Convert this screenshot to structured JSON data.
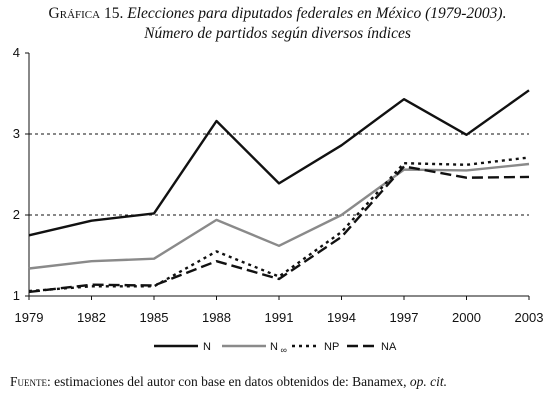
{
  "title": {
    "label": "Gráfica 15.",
    "text": "Elecciones para diputados federales en México (1979-2003).",
    "subtitle": "Número de partidos según diversos índices"
  },
  "source": {
    "label": "Fuente:",
    "text": "estimaciones del autor con base en datos obtenidos de: Banamex,",
    "cit": "op. cit."
  },
  "chart_data": {
    "type": "line",
    "title": "Elecciones para diputados federales en México (1979-2003). Número de partidos según diversos índices",
    "xlabel": "",
    "ylabel": "",
    "x": [
      "1979",
      "1982",
      "1985",
      "1988",
      "1991",
      "1994",
      "1997",
      "2000",
      "2003"
    ],
    "ylim": [
      1,
      4
    ],
    "yticks": [
      "1",
      "2",
      "3",
      "4"
    ],
    "grid": "dashed horizontal at 2 and 3",
    "legend_position": "bottom",
    "series": [
      {
        "name": "N",
        "sub": "",
        "values": [
          1.75,
          1.93,
          2.02,
          3.16,
          2.39,
          2.86,
          3.43,
          2.99,
          3.54
        ],
        "color": "#111111",
        "style": "solid"
      },
      {
        "name": "N",
        "sub": "∞",
        "values": [
          1.34,
          1.43,
          1.46,
          1.94,
          1.62,
          2.0,
          2.56,
          2.55,
          2.63
        ],
        "color": "#8a8a8a",
        "style": "solid"
      },
      {
        "name": "NP",
        "sub": "",
        "values": [
          1.06,
          1.12,
          1.12,
          1.55,
          1.24,
          1.79,
          2.64,
          2.62,
          2.71
        ],
        "color": "#111111",
        "style": "dotted"
      },
      {
        "name": "NA",
        "sub": "",
        "values": [
          1.05,
          1.14,
          1.13,
          1.43,
          1.21,
          1.73,
          2.6,
          2.46,
          2.47
        ],
        "color": "#111111",
        "style": "dashed"
      }
    ]
  }
}
